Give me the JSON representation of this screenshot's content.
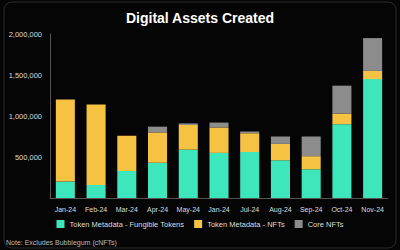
{
  "chart_data": {
    "type": "bar",
    "title": "Digital Assets Created",
    "annotation": "Note: Excludes Bubblegum (cNFTs)",
    "categories": [
      "Jan-24",
      "Feb-24",
      "Mar-24",
      "Apr-24",
      "May-24",
      "Jan-24",
      "Jul-24",
      "Aug-24",
      "Sep-24",
      "Oct-24",
      "Nov-24"
    ],
    "series": [
      {
        "name": "Token Metadata - Fungible Tokens",
        "color": "#3ee6bc",
        "values": [
          200000,
          160000,
          330000,
          430000,
          590000,
          550000,
          560000,
          460000,
          350000,
          900000,
          1450000
        ]
      },
      {
        "name": "Token Metadata - NFTs",
        "color": "#f5c242",
        "values": [
          1000000,
          980000,
          430000,
          370000,
          300000,
          310000,
          230000,
          200000,
          160000,
          130000,
          100000
        ]
      },
      {
        "name": "Core NFTs",
        "color": "#8c8c8c",
        "values": [
          0,
          0,
          0,
          70000,
          20000,
          60000,
          20000,
          90000,
          240000,
          340000,
          400000
        ]
      }
    ],
    "stacked": true,
    "ylim": [
      0,
      2000000
    ],
    "yticks": [
      {
        "value": 500000,
        "label": "500,000"
      },
      {
        "value": 1000000,
        "label": "1,000,000"
      },
      {
        "value": 1500000,
        "label": "1,500,000"
      },
      {
        "value": 2000000,
        "label": "2,000,000"
      }
    ],
    "grid": false,
    "legend": "bottom"
  }
}
